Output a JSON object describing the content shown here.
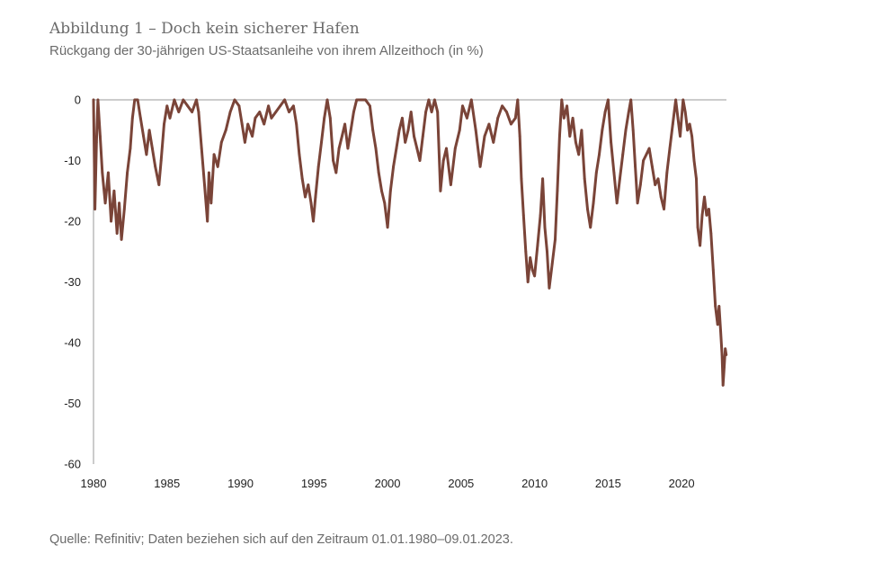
{
  "figure": {
    "title": "Abbildung 1 – Doch kein sicherer Hafen",
    "subtitle": "Rückgang der 30-jährigen US-Staatsanleihe von ihrem Allzeithoch (in %)",
    "source": "Quelle: Refinitiv; Daten beziehen sich auf den Zeitraum 01.01.1980–09.01.2023."
  },
  "chart_data": {
    "type": "line",
    "title": "Abbildung 1 – Doch kein sicherer Hafen",
    "subtitle": "Rückgang der 30-jährigen US-Staatsanleihe von ihrem Allzeithoch (in %)",
    "xlabel": "",
    "ylabel": "",
    "xlim": [
      1980.0,
      2023.05
    ],
    "ylim": [
      -60,
      0
    ],
    "x_ticks": [
      1980,
      1985,
      1990,
      1995,
      2000,
      2005,
      2010,
      2015,
      2020
    ],
    "x_tick_labels": [
      "1980",
      "1985",
      "1990",
      "1995",
      "2000",
      "2005",
      "2010",
      "2015",
      "2020"
    ],
    "y_ticks": [
      0,
      -10,
      -20,
      -30,
      -40,
      -50,
      -60
    ],
    "y_tick_labels": [
      "0",
      "-10",
      "-20",
      "-30",
      "-40",
      "-50",
      "-60"
    ],
    "grid": false,
    "legend": "none",
    "line_color": "#7a4438",
    "series": [
      {
        "values": [
          {
            "x": 1980.0,
            "y": 0
          },
          {
            "x": 1980.1,
            "y": -18
          },
          {
            "x": 1980.2,
            "y": -7
          },
          {
            "x": 1980.3,
            "y": 0
          },
          {
            "x": 1980.45,
            "y": -6
          },
          {
            "x": 1980.6,
            "y": -12
          },
          {
            "x": 1980.8,
            "y": -17
          },
          {
            "x": 1981.0,
            "y": -12
          },
          {
            "x": 1981.2,
            "y": -20
          },
          {
            "x": 1981.4,
            "y": -15
          },
          {
            "x": 1981.6,
            "y": -22
          },
          {
            "x": 1981.75,
            "y": -17
          },
          {
            "x": 1981.9,
            "y": -23
          },
          {
            "x": 1982.1,
            "y": -18
          },
          {
            "x": 1982.3,
            "y": -12
          },
          {
            "x": 1982.5,
            "y": -8
          },
          {
            "x": 1982.65,
            "y": -3
          },
          {
            "x": 1982.8,
            "y": 0
          },
          {
            "x": 1983.0,
            "y": 0
          },
          {
            "x": 1983.2,
            "y": -3
          },
          {
            "x": 1983.4,
            "y": -6
          },
          {
            "x": 1983.6,
            "y": -9
          },
          {
            "x": 1983.8,
            "y": -5
          },
          {
            "x": 1984.0,
            "y": -8
          },
          {
            "x": 1984.2,
            "y": -11
          },
          {
            "x": 1984.45,
            "y": -14
          },
          {
            "x": 1984.6,
            "y": -10
          },
          {
            "x": 1984.8,
            "y": -4
          },
          {
            "x": 1985.0,
            "y": -1
          },
          {
            "x": 1985.2,
            "y": -3
          },
          {
            "x": 1985.5,
            "y": 0
          },
          {
            "x": 1985.8,
            "y": -2
          },
          {
            "x": 1986.1,
            "y": 0
          },
          {
            "x": 1986.4,
            "y": -1
          },
          {
            "x": 1986.7,
            "y": -2
          },
          {
            "x": 1987.0,
            "y": 0
          },
          {
            "x": 1987.15,
            "y": -2
          },
          {
            "x": 1987.35,
            "y": -8
          },
          {
            "x": 1987.55,
            "y": -14
          },
          {
            "x": 1987.75,
            "y": -20
          },
          {
            "x": 1987.85,
            "y": -12
          },
          {
            "x": 1988.0,
            "y": -17
          },
          {
            "x": 1988.2,
            "y": -9
          },
          {
            "x": 1988.45,
            "y": -11
          },
          {
            "x": 1988.7,
            "y": -7
          },
          {
            "x": 1989.0,
            "y": -5
          },
          {
            "x": 1989.3,
            "y": -2
          },
          {
            "x": 1989.6,
            "y": 0
          },
          {
            "x": 1989.9,
            "y": -1
          },
          {
            "x": 1990.1,
            "y": -4
          },
          {
            "x": 1990.3,
            "y": -7
          },
          {
            "x": 1990.5,
            "y": -4
          },
          {
            "x": 1990.8,
            "y": -6
          },
          {
            "x": 1991.0,
            "y": -3
          },
          {
            "x": 1991.3,
            "y": -2
          },
          {
            "x": 1991.6,
            "y": -4
          },
          {
            "x": 1991.9,
            "y": -1
          },
          {
            "x": 1992.1,
            "y": -3
          },
          {
            "x": 1992.4,
            "y": -2
          },
          {
            "x": 1992.7,
            "y": -1
          },
          {
            "x": 1993.0,
            "y": 0
          },
          {
            "x": 1993.3,
            "y": -2
          },
          {
            "x": 1993.6,
            "y": -1
          },
          {
            "x": 1993.8,
            "y": -4
          },
          {
            "x": 1994.0,
            "y": -9
          },
          {
            "x": 1994.2,
            "y": -13
          },
          {
            "x": 1994.4,
            "y": -16
          },
          {
            "x": 1994.6,
            "y": -14
          },
          {
            "x": 1994.8,
            "y": -17
          },
          {
            "x": 1994.95,
            "y": -20
          },
          {
            "x": 1995.1,
            "y": -16
          },
          {
            "x": 1995.3,
            "y": -11
          },
          {
            "x": 1995.5,
            "y": -7
          },
          {
            "x": 1995.7,
            "y": -3
          },
          {
            "x": 1995.9,
            "y": 0
          },
          {
            "x": 1996.1,
            "y": -3
          },
          {
            "x": 1996.3,
            "y": -10
          },
          {
            "x": 1996.5,
            "y": -12
          },
          {
            "x": 1996.7,
            "y": -8
          },
          {
            "x": 1996.9,
            "y": -6
          },
          {
            "x": 1997.1,
            "y": -4
          },
          {
            "x": 1997.3,
            "y": -8
          },
          {
            "x": 1997.5,
            "y": -5
          },
          {
            "x": 1997.7,
            "y": -2
          },
          {
            "x": 1997.9,
            "y": 0
          },
          {
            "x": 1998.2,
            "y": 0
          },
          {
            "x": 1998.5,
            "y": 0
          },
          {
            "x": 1998.8,
            "y": -1
          },
          {
            "x": 1999.0,
            "y": -5
          },
          {
            "x": 1999.2,
            "y": -8
          },
          {
            "x": 1999.4,
            "y": -12
          },
          {
            "x": 1999.6,
            "y": -15
          },
          {
            "x": 1999.8,
            "y": -17
          },
          {
            "x": 2000.0,
            "y": -21
          },
          {
            "x": 2000.2,
            "y": -15
          },
          {
            "x": 2000.4,
            "y": -11
          },
          {
            "x": 2000.6,
            "y": -8
          },
          {
            "x": 2000.8,
            "y": -5
          },
          {
            "x": 2001.0,
            "y": -3
          },
          {
            "x": 2001.2,
            "y": -7
          },
          {
            "x": 2001.4,
            "y": -5
          },
          {
            "x": 2001.6,
            "y": -2
          },
          {
            "x": 2001.8,
            "y": -6
          },
          {
            "x": 2002.0,
            "y": -8
          },
          {
            "x": 2002.2,
            "y": -10
          },
          {
            "x": 2002.4,
            "y": -6
          },
          {
            "x": 2002.6,
            "y": -2
          },
          {
            "x": 2002.8,
            "y": 0
          },
          {
            "x": 2003.0,
            "y": -2
          },
          {
            "x": 2003.2,
            "y": 0
          },
          {
            "x": 2003.4,
            "y": -2
          },
          {
            "x": 2003.6,
            "y": -15
          },
          {
            "x": 2003.8,
            "y": -10
          },
          {
            "x": 2004.0,
            "y": -8
          },
          {
            "x": 2004.3,
            "y": -14
          },
          {
            "x": 2004.6,
            "y": -8
          },
          {
            "x": 2004.9,
            "y": -5
          },
          {
            "x": 2005.1,
            "y": -1
          },
          {
            "x": 2005.4,
            "y": -3
          },
          {
            "x": 2005.7,
            "y": 0
          },
          {
            "x": 2006.0,
            "y": -5
          },
          {
            "x": 2006.3,
            "y": -11
          },
          {
            "x": 2006.6,
            "y": -6
          },
          {
            "x": 2006.9,
            "y": -4
          },
          {
            "x": 2007.2,
            "y": -7
          },
          {
            "x": 2007.5,
            "y": -3
          },
          {
            "x": 2007.8,
            "y": -1
          },
          {
            "x": 2008.1,
            "y": -2
          },
          {
            "x": 2008.4,
            "y": -4
          },
          {
            "x": 2008.7,
            "y": -3
          },
          {
            "x": 2008.85,
            "y": 0
          },
          {
            "x": 2009.0,
            "y": -6
          },
          {
            "x": 2009.1,
            "y": -13
          },
          {
            "x": 2009.25,
            "y": -19
          },
          {
            "x": 2009.4,
            "y": -25
          },
          {
            "x": 2009.55,
            "y": -30
          },
          {
            "x": 2009.7,
            "y": -26
          },
          {
            "x": 2009.85,
            "y": -28
          },
          {
            "x": 2010.0,
            "y": -29
          },
          {
            "x": 2010.2,
            "y": -24
          },
          {
            "x": 2010.4,
            "y": -19
          },
          {
            "x": 2010.55,
            "y": -13
          },
          {
            "x": 2010.7,
            "y": -21
          },
          {
            "x": 2010.85,
            "y": -25
          },
          {
            "x": 2011.0,
            "y": -31
          },
          {
            "x": 2011.2,
            "y": -27
          },
          {
            "x": 2011.4,
            "y": -23
          },
          {
            "x": 2011.55,
            "y": -15
          },
          {
            "x": 2011.7,
            "y": -6
          },
          {
            "x": 2011.85,
            "y": 0
          },
          {
            "x": 2012.0,
            "y": -3
          },
          {
            "x": 2012.2,
            "y": -1
          },
          {
            "x": 2012.4,
            "y": -6
          },
          {
            "x": 2012.6,
            "y": -3
          },
          {
            "x": 2012.8,
            "y": -7
          },
          {
            "x": 2013.0,
            "y": -9
          },
          {
            "x": 2013.2,
            "y": -5
          },
          {
            "x": 2013.4,
            "y": -13
          },
          {
            "x": 2013.6,
            "y": -18
          },
          {
            "x": 2013.8,
            "y": -21
          },
          {
            "x": 2014.0,
            "y": -17
          },
          {
            "x": 2014.2,
            "y": -12
          },
          {
            "x": 2014.4,
            "y": -9
          },
          {
            "x": 2014.6,
            "y": -5
          },
          {
            "x": 2014.8,
            "y": -2
          },
          {
            "x": 2015.0,
            "y": 0
          },
          {
            "x": 2015.2,
            "y": -7
          },
          {
            "x": 2015.4,
            "y": -12
          },
          {
            "x": 2015.6,
            "y": -17
          },
          {
            "x": 2015.8,
            "y": -13
          },
          {
            "x": 2016.0,
            "y": -9
          },
          {
            "x": 2016.2,
            "y": -5
          },
          {
            "x": 2016.4,
            "y": -2
          },
          {
            "x": 2016.55,
            "y": 0
          },
          {
            "x": 2016.7,
            "y": -5
          },
          {
            "x": 2016.85,
            "y": -11
          },
          {
            "x": 2017.0,
            "y": -17
          },
          {
            "x": 2017.2,
            "y": -14
          },
          {
            "x": 2017.4,
            "y": -10
          },
          {
            "x": 2017.6,
            "y": -9
          },
          {
            "x": 2017.8,
            "y": -8
          },
          {
            "x": 2018.0,
            "y": -11
          },
          {
            "x": 2018.2,
            "y": -14
          },
          {
            "x": 2018.4,
            "y": -13
          },
          {
            "x": 2018.6,
            "y": -16
          },
          {
            "x": 2018.8,
            "y": -18
          },
          {
            "x": 2019.0,
            "y": -12
          },
          {
            "x": 2019.2,
            "y": -8
          },
          {
            "x": 2019.4,
            "y": -4
          },
          {
            "x": 2019.6,
            "y": 0
          },
          {
            "x": 2019.75,
            "y": -3
          },
          {
            "x": 2019.9,
            "y": -6
          },
          {
            "x": 2020.0,
            "y": -3
          },
          {
            "x": 2020.1,
            "y": 0
          },
          {
            "x": 2020.25,
            "y": -2
          },
          {
            "x": 2020.4,
            "y": -5
          },
          {
            "x": 2020.55,
            "y": -4
          },
          {
            "x": 2020.7,
            "y": -6
          },
          {
            "x": 2020.85,
            "y": -10
          },
          {
            "x": 2021.0,
            "y": -13
          },
          {
            "x": 2021.1,
            "y": -21
          },
          {
            "x": 2021.25,
            "y": -24
          },
          {
            "x": 2021.4,
            "y": -19
          },
          {
            "x": 2021.55,
            "y": -16
          },
          {
            "x": 2021.7,
            "y": -19
          },
          {
            "x": 2021.85,
            "y": -18
          },
          {
            "x": 2022.0,
            "y": -22
          },
          {
            "x": 2022.15,
            "y": -28
          },
          {
            "x": 2022.3,
            "y": -34
          },
          {
            "x": 2022.45,
            "y": -37
          },
          {
            "x": 2022.55,
            "y": -34
          },
          {
            "x": 2022.65,
            "y": -38
          },
          {
            "x": 2022.75,
            "y": -42
          },
          {
            "x": 2022.82,
            "y": -47
          },
          {
            "x": 2022.9,
            "y": -44
          },
          {
            "x": 2022.97,
            "y": -41
          },
          {
            "x": 2023.03,
            "y": -42
          }
        ]
      }
    ]
  }
}
